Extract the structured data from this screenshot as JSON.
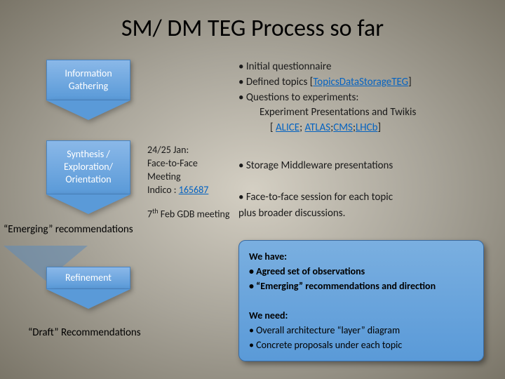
{
  "title": "SM/ DM TEG Process so far",
  "arrows": {
    "a1": "Information Gathering",
    "a2": "Synthesis / Exploration/ Orientation",
    "a3": "Refinement"
  },
  "emerging": "“Emerging” recommendations",
  "draft": "“Draft” Recommendations",
  "meeting": {
    "line1": "24/25 Jan:",
    "line2": "Face-to-Face Meeting",
    "line3": "Indico :",
    "link": "165687"
  },
  "meeting2_pre": "7",
  "meeting2_sup": "th",
  "meeting2_post": " Feb GDB meeting",
  "top_bullets": {
    "b1": "Initial questionnaire",
    "b2_pre": "Defined topics [",
    "b2_link": "TopicsDataStorageTEG",
    "b2_post": "]",
    "b3": "Questions to experiments:",
    "b3a": "Experiment Presentations and Twikis",
    "links_pre": "[ ",
    "alice": "ALICE",
    "atlas": "ATLAS",
    "cms": "CMS",
    "lhcb": "LHCb",
    "links_post": "]"
  },
  "mid_bullets": {
    "m1": "Storage Middleware presentations",
    "m2a": "Face-to-face session for each topic",
    "m2b": "plus broader discussions."
  },
  "summary": {
    "have_head": "We have:",
    "have1": "Agreed set of observations",
    "have2": "“Emerging” recommendations and direction",
    "need_head": "We need:",
    "need1": "Overall architecture “layer” diagram",
    "need2": "Concrete proposals under each topic"
  },
  "colors": {
    "arrow_fill_top": "#8ab8e8",
    "arrow_fill_bottom": "#5a9ad8",
    "link": "#0563c1",
    "box_bg_top": "#7aafe0",
    "box_bg_bottom": "#5a9ad8"
  }
}
